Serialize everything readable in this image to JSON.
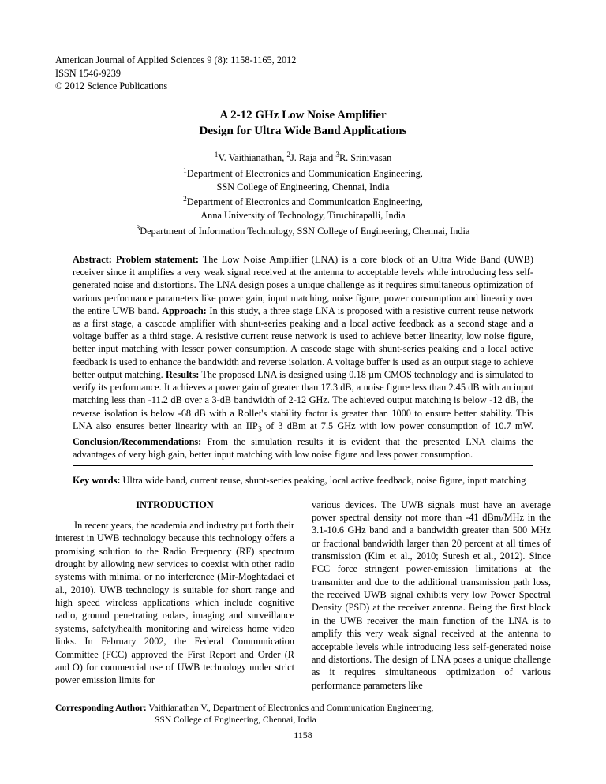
{
  "journal": {
    "line1": "American Journal of Applied Sciences 9 (8): 1158-1165, 2012",
    "line2": "ISSN 1546-9239",
    "line3": "© 2012 Science Publications"
  },
  "title": {
    "line1": "A 2-12 GHz Low Noise Amplifier",
    "line2": "Design for Ultra Wide Band Applications"
  },
  "authors": {
    "pre1": "1",
    "a1": "V. Vaithianathan, ",
    "pre2": "2",
    "a2": "J. Raja and ",
    "pre3": "3",
    "a3": "R. Srinivasan",
    "aff1_pre": "1",
    "aff1": "Department of Electronics and Communication Engineering,",
    "aff1b": "SSN College of Engineering, Chennai, India",
    "aff2_pre": "2",
    "aff2": "Department of Electronics and Communication Engineering,",
    "aff2b": "Anna University of Technology, Tiruchirapalli, India",
    "aff3_pre": "3",
    "aff3": "Department of Information Technology, SSN College of Engineering, Chennai, India"
  },
  "abstract": {
    "label_ps": "Abstract: Problem statement:",
    "ps": " The Low Noise Amplifier (LNA) is a core block of an Ultra Wide Band (UWB) receiver since it amplifies a very weak signal received at the antenna to acceptable levels while introducing less self-generated noise and distortions. The LNA design poses a unique challenge as it requires simultaneous optimization of various performance parameters like power gain, input matching, noise figure, power consumption and linearity over the entire UWB band. ",
    "label_ap": "Approach:",
    "ap": " In this study, a three stage LNA is proposed with a resistive current reuse network as a first stage, a cascode amplifier with shunt-series peaking and a local active feedback as a second stage and a voltage buffer as a third stage. A resistive current reuse network is used to achieve better linearity, low noise figure, better input matching with lesser power consumption. A cascode stage with shunt-series peaking and a local active feedback is used to enhance the bandwidth and reverse isolation. A voltage buffer is used as an output stage to achieve better output matching. ",
    "label_re": "Results:",
    "re": " The proposed LNA is designed using 0.18 µm CMOS technology and is simulated to verify its performance. It achieves a power gain of greater than 17.3 dB, a noise figure less than 2.45 dB with an input matching less than -11.2 dB over a 3-dB bandwidth of 2-12 GHz. The achieved output matching is below -12 dB, the reverse isolation is below -68 dB with a Rollet's stability factor is greater than 1000 to ensure better stability. This LNA also ensures better linearity with an IIP",
    "iip_sub": "3",
    "re2": " of 3 dBm at 7.5 GHz with low power consumption of 10.7 mW. ",
    "label_co": "Conclusion/Recommendations:",
    "co": " From the simulation results it is evident that the presented LNA claims the advantages of very high gain, better input matching with low noise figure and less power consumption."
  },
  "keywords": {
    "label": "Key words:",
    "text": " Ultra wide band, current reuse, shunt-series peaking, local active feedback, noise figure, input matching"
  },
  "intro_heading": "INTRODUCTION",
  "col_left": "In recent years, the academia and industry put forth their interest in UWB technology because this technology offers a promising solution to the Radio Frequency (RF) spectrum drought by allowing new services to coexist with other radio systems with minimal or no interference (Mir-Moghtadaei et al., 2010). UWB technology is suitable for short range and high speed wireless applications which include cognitive radio, ground penetrating radars, imaging and surveillance systems, safety/health monitoring and wireless home video links. In February 2002, the Federal Communication Committee (FCC) approved the First Report and Order (R and O) for commercial use of UWB technology under strict power emission limits for",
  "col_right": "various devices. The UWB signals must have an average power spectral density not more than -41 dBm/MHz in the 3.1-10.6 GHz band and a bandwidth greater than 500 MHz or fractional bandwidth larger than 20 percent at all times of transmission (Kim et al., 2010; Suresh et al., 2012). Since FCC force stringent power-emission limitations at the transmitter and due to the additional transmission path loss, the received UWB signal exhibits very low Power Spectral Density (PSD) at the receiver antenna. Being the first block in the UWB receiver the main function of the LNA is to amplify this very weak signal received at the antenna to acceptable levels while introducing less self-generated noise and distortions. The design of LNA poses a unique challenge as it requires simultaneous optimization of various performance parameters like",
  "corresponding": {
    "label": "Corresponding Author:",
    "line1": "  Vaithianathan V., Department of Electronics and Communication Engineering,",
    "line2": "SSN College of Engineering, Chennai, India"
  },
  "page_number": "1158"
}
